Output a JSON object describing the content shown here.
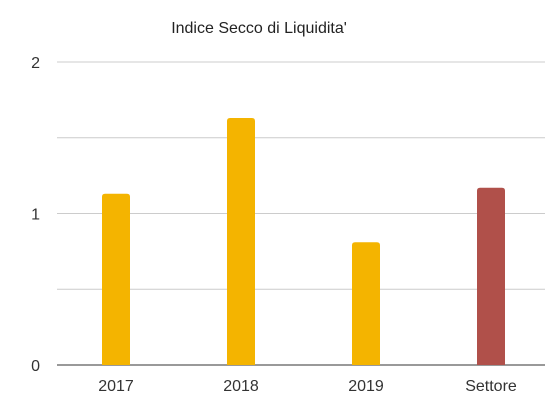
{
  "chart_data": {
    "type": "bar",
    "title": "Indice Secco di Liquidita'",
    "xlabel": "",
    "ylabel": "",
    "categories": [
      "2017",
      "2018",
      "2019",
      "Settore"
    ],
    "values": [
      1.13,
      1.63,
      0.81,
      1.17
    ],
    "bar_colors": [
      "#f4b400",
      "#f4b400",
      "#f4b400",
      "#b0504a"
    ],
    "ylim": [
      0,
      2
    ],
    "y_ticks": [
      0,
      1,
      2
    ],
    "y_tick_labels": [
      "0",
      "1",
      "2"
    ],
    "gridlines": [
      0,
      0.5,
      1,
      1.5,
      2
    ],
    "grid": true,
    "legend": "none"
  }
}
